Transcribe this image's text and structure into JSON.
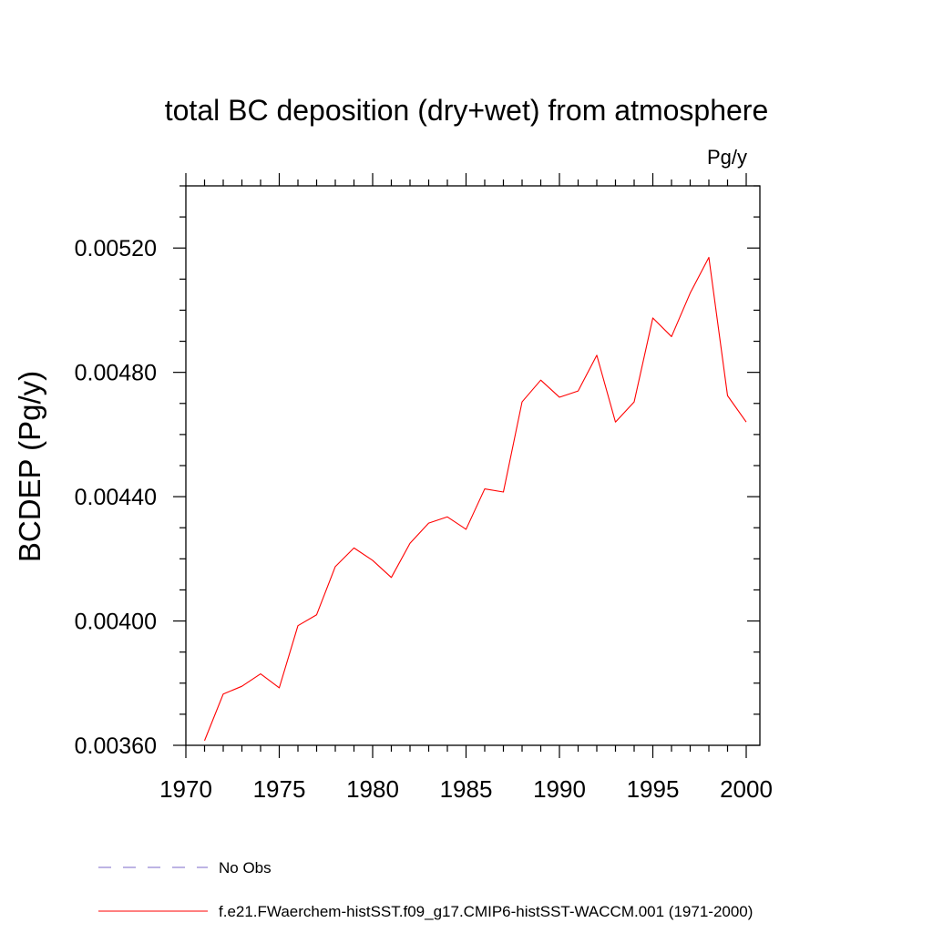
{
  "chart_data": {
    "type": "line",
    "title": "total BC deposition (dry+wet) from atmosphere",
    "units": "Pg/y",
    "ylabel": "BCDEP  (Pg/y)",
    "xlabel": "",
    "xlim": [
      1970,
      2000
    ],
    "ylim": [
      0.0036,
      0.0054
    ],
    "xticks": [
      1970,
      1975,
      1980,
      1985,
      1990,
      1995,
      2000
    ],
    "xtick_labels": [
      "1970",
      "1975",
      "1980",
      "1985",
      "1990",
      "1995",
      "2000"
    ],
    "yticks": [
      0.0036,
      0.004,
      0.0044,
      0.0048,
      0.0052
    ],
    "ytick_labels": [
      "0.00360",
      "0.00400",
      "0.00440",
      "0.00480",
      "0.00520"
    ],
    "grid": false,
    "legend_position": "bottom",
    "series": [
      {
        "name": "f.e21.FWaerchem-histSST.f09_g17.CMIP6-histSST-WACCM.001 (1971-2000)",
        "color": "#ff0000",
        "dash": "solid",
        "x": [
          1971,
          1972,
          1973,
          1974,
          1975,
          1976,
          1977,
          1978,
          1979,
          1980,
          1981,
          1982,
          1983,
          1984,
          1985,
          1986,
          1987,
          1988,
          1989,
          1990,
          1991,
          1992,
          1993,
          1994,
          1995,
          1996,
          1997,
          1998,
          1999,
          2000
        ],
        "values": [
          0.003615,
          0.003765,
          0.00379,
          0.00383,
          0.003785,
          0.003985,
          0.00402,
          0.004175,
          0.004235,
          0.004195,
          0.00414,
          0.00425,
          0.004315,
          0.004335,
          0.004295,
          0.004425,
          0.004415,
          0.004705,
          0.004775,
          0.00472,
          0.00474,
          0.004855,
          0.00464,
          0.004705,
          0.004975,
          0.004915,
          0.005055,
          0.00517,
          0.004725,
          0.00464
        ]
      },
      {
        "name": "No Obs",
        "color": "#7b68c9",
        "dash": "dashed",
        "x": [],
        "values": []
      }
    ]
  }
}
